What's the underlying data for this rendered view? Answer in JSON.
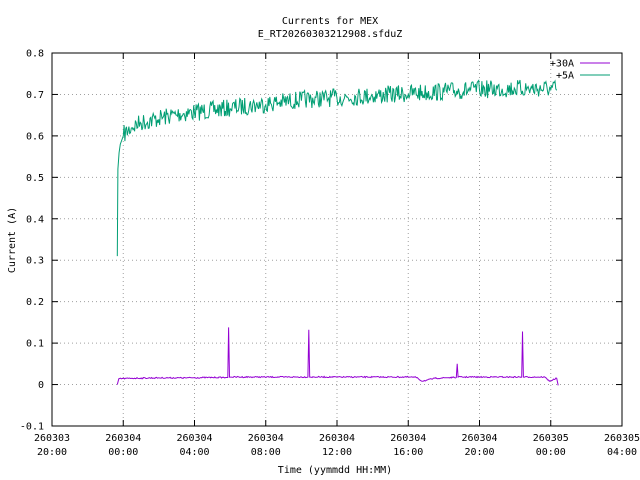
{
  "chart_data": {
    "type": "line",
    "title": "Currents for MEX",
    "subtitle": "E_RT20260303212908.sfduZ",
    "xlabel": "Time (yymmdd HH:MM)",
    "ylabel": "Current (A)",
    "xlim": [
      "2026-03-03 20:00",
      "2026-03-05 04:00"
    ],
    "ylim": [
      -0.1,
      0.8
    ],
    "grid": true,
    "legend_position": "top-right",
    "x_ticks": [
      {
        "date": "260303",
        "time": "20:00"
      },
      {
        "date": "260304",
        "time": "00:00"
      },
      {
        "date": "260304",
        "time": "04:00"
      },
      {
        "date": "260304",
        "time": "08:00"
      },
      {
        "date": "260304",
        "time": "12:00"
      },
      {
        "date": "260304",
        "time": "16:00"
      },
      {
        "date": "260304",
        "time": "20:00"
      },
      {
        "date": "260305",
        "time": "00:00"
      },
      {
        "date": "260305",
        "time": "04:00"
      }
    ],
    "y_ticks": [
      "-0.1",
      "0",
      "0.1",
      "0.2",
      "0.3",
      "0.4",
      "0.5",
      "0.6",
      "0.7",
      "0.8"
    ],
    "series": [
      {
        "name": "+30A",
        "color": "#9400d3",
        "x": [
          "2026-03-03 23:40",
          "2026-03-03 23:45",
          "2026-03-04 00:30",
          "2026-03-04 02:00",
          "2026-03-04 03:30",
          "2026-03-04 05:00",
          "2026-03-04 05:45",
          "2026-03-04 05:52",
          "2026-03-04 05:55",
          "2026-03-04 05:58",
          "2026-03-04 06:05",
          "2026-03-04 07:30",
          "2026-03-04 09:00",
          "2026-03-04 10:22",
          "2026-03-04 10:25",
          "2026-03-04 10:28",
          "2026-03-04 12:00",
          "2026-03-04 14:00",
          "2026-03-04 16:00",
          "2026-03-04 16:30",
          "2026-03-04 16:45",
          "2026-03-04 17:00",
          "2026-03-04 17:30",
          "2026-03-04 18:30",
          "2026-03-04 18:42",
          "2026-03-04 18:45",
          "2026-03-04 18:48",
          "2026-03-04 20:00",
          "2026-03-04 21:30",
          "2026-03-04 22:22",
          "2026-03-04 22:25",
          "2026-03-04 22:28",
          "2026-03-04 23:00",
          "2026-03-04 23:40",
          "2026-03-04 23:55",
          "2026-03-05 00:20",
          "2026-03-05 00:25"
        ],
        "values": [
          0.0,
          0.014,
          0.015,
          0.016,
          0.016,
          0.017,
          0.017,
          0.017,
          0.138,
          0.018,
          0.018,
          0.018,
          0.018,
          0.018,
          0.132,
          0.018,
          0.018,
          0.018,
          0.018,
          0.017,
          0.008,
          0.01,
          0.015,
          0.017,
          0.017,
          0.05,
          0.018,
          0.018,
          0.018,
          0.018,
          0.128,
          0.018,
          0.018,
          0.018,
          0.008,
          0.015,
          -0.002
        ]
      },
      {
        "name": "+5A",
        "color": "#009e73",
        "x": [
          "2026-03-03 23:40",
          "2026-03-03 23:42",
          "2026-03-03 23:46",
          "2026-03-03 23:50",
          "2026-03-04 00:00",
          "2026-03-04 00:30",
          "2026-03-04 01:00",
          "2026-03-04 02:00",
          "2026-03-04 03:00",
          "2026-03-04 04:00",
          "2026-03-04 06:00",
          "2026-03-04 08:00",
          "2026-03-04 10:00",
          "2026-03-04 12:00",
          "2026-03-04 14:00",
          "2026-03-04 16:00",
          "2026-03-04 18:00",
          "2026-03-04 20:00",
          "2026-03-04 22:00",
          "2026-03-05 00:00",
          "2026-03-05 00:20"
        ],
        "values": [
          0.31,
          0.52,
          0.56,
          0.58,
          0.6,
          0.62,
          0.63,
          0.64,
          0.65,
          0.655,
          0.665,
          0.675,
          0.685,
          0.69,
          0.695,
          0.7,
          0.705,
          0.71,
          0.712,
          0.712,
          0.71
        ]
      }
    ]
  }
}
